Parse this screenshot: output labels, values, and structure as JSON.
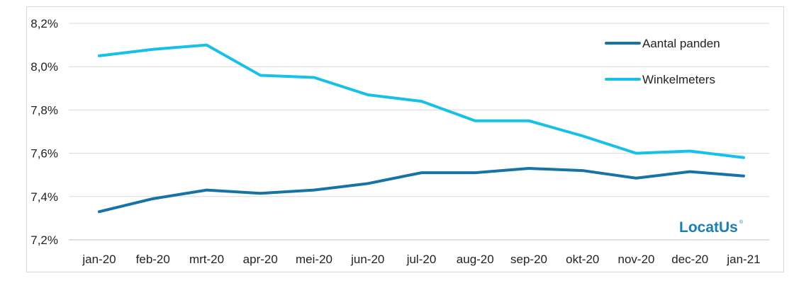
{
  "chart_data": {
    "type": "line",
    "title": "",
    "xlabel": "",
    "ylabel": "",
    "categories": [
      "jan-20",
      "feb-20",
      "mrt-20",
      "apr-20",
      "mei-20",
      "jun-20",
      "jul-20",
      "aug-20",
      "sep-20",
      "okt-20",
      "nov-20",
      "dec-20",
      "jan-21"
    ],
    "yticks": [
      "7,2%",
      "7,4%",
      "7,6%",
      "7,8%",
      "8,0%",
      "8,2%"
    ],
    "ylim": [
      7.2,
      8.2
    ],
    "grid": "horizontal",
    "legend_position": "top-right",
    "series": [
      {
        "name": "Aantal panden",
        "color": "#1673a5",
        "values": [
          7.33,
          7.39,
          7.43,
          7.415,
          7.43,
          7.46,
          7.51,
          7.51,
          7.53,
          7.52,
          7.485,
          7.515,
          7.495
        ]
      },
      {
        "name": "Winkelmeters",
        "color": "#16c0e8",
        "values": [
          8.05,
          8.08,
          8.1,
          7.96,
          7.95,
          7.87,
          7.84,
          7.75,
          7.75,
          7.68,
          7.6,
          7.61,
          7.58
        ]
      }
    ]
  },
  "logo": {
    "text": "LocatUs",
    "mark": "®"
  }
}
